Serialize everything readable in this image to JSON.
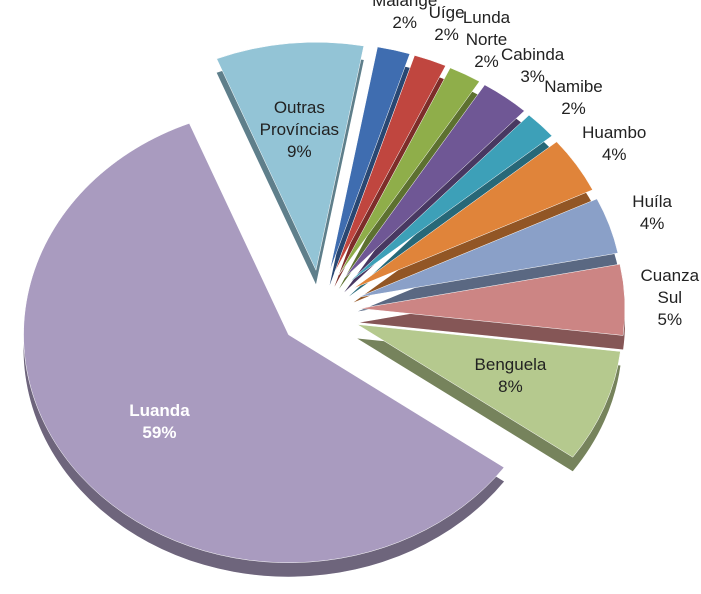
{
  "chart_data": {
    "type": "pie",
    "categories": [
      "Outras Províncias",
      "Malange",
      "Uíge",
      "Lunda Norte",
      "Cabinda",
      "Namibe",
      "Huambo",
      "Huíla",
      "Cuanza Sul",
      "Benguela",
      "Luanda"
    ],
    "values": [
      9,
      2,
      2,
      2,
      3,
      2,
      4,
      4,
      5,
      8,
      59
    ],
    "value_labels": [
      "9%",
      "2%",
      "2%",
      "2%",
      "3%",
      "2%",
      "4%",
      "4%",
      "5%",
      "8%",
      "59%"
    ],
    "colors": [
      "#93c4d6",
      "#3f6db0",
      "#c0463f",
      "#8fae4a",
      "#6f5795",
      "#3da0b8",
      "#e0843a",
      "#8aa0c8",
      "#cc8584",
      "#b5c98e",
      "#a99bbf"
    ]
  }
}
